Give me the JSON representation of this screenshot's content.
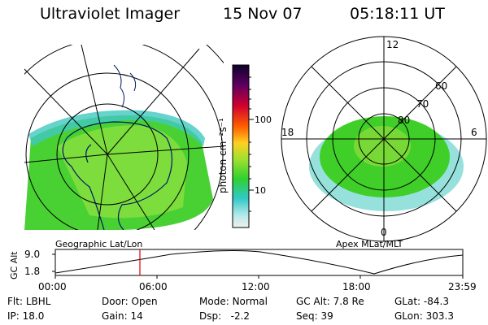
{
  "header": {
    "title": "Ultraviolet Imager",
    "date": "15 Nov 07",
    "time": "05:18:11 UT"
  },
  "colorbar": {
    "unit_label": "photon cm⁻²s⁻¹",
    "ticks": [
      "100",
      "10"
    ]
  },
  "geo_map": {
    "caption": "Geographic Lat/Lon"
  },
  "polar_plot": {
    "caption": "Apex  MLat/MLT",
    "mlt_labels": [
      "12",
      "18",
      "6",
      "0"
    ],
    "lat_labels": [
      "60",
      "70",
      "80"
    ]
  },
  "altitude_plot": {
    "axis_title": "GC Alt",
    "y_ticks": [
      "9.0",
      "1.8"
    ],
    "x_ticks": [
      "00:00",
      "06:00",
      "12:00",
      "18:00",
      "23:59"
    ]
  },
  "info": {
    "row1": [
      {
        "label": "Flt:",
        "value": "LBHL"
      },
      {
        "label": "Door:",
        "value": "Open"
      },
      {
        "label": "Mode:",
        "value": "Normal"
      },
      {
        "label": "GC Alt:",
        "value": "7.8 Re"
      },
      {
        "label": "GLat:",
        "value": "-84.3"
      }
    ],
    "row2": [
      {
        "label": "IP:",
        "value": "18.0"
      },
      {
        "label": "Gain:",
        "value": "14"
      },
      {
        "label": "Dsp:",
        "value": "-2.2"
      },
      {
        "label": "Seq:",
        "value": "39"
      },
      {
        "label": "GLon:",
        "value": "303.3"
      }
    ]
  },
  "colors": {
    "aurora_green": "#44d020",
    "aurora_cyan": "#30c8c0",
    "marker": "#e00000"
  }
}
